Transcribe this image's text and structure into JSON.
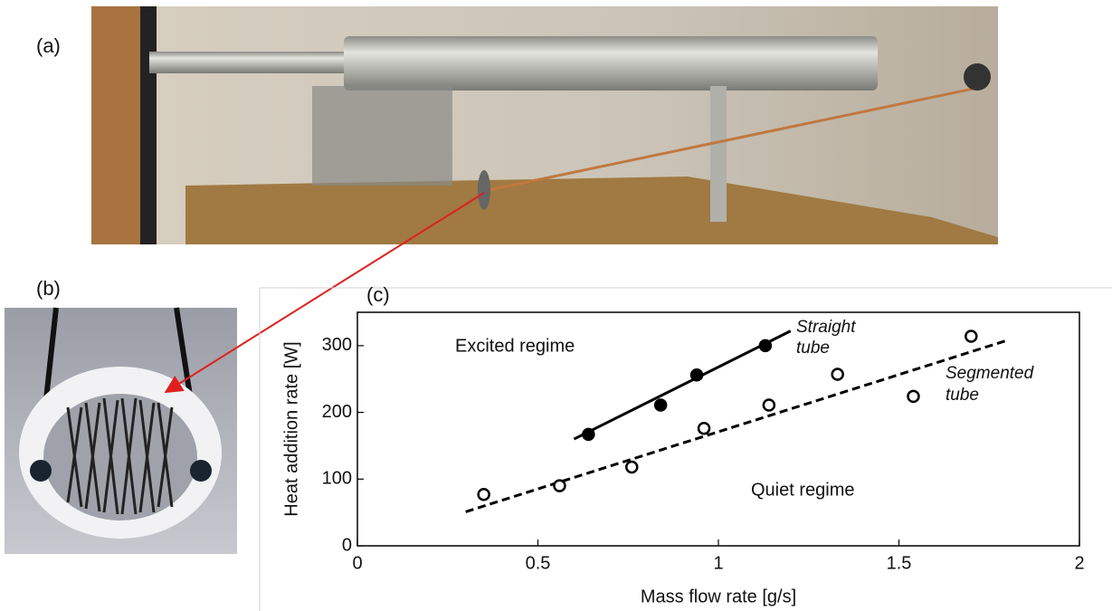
{
  "panels": {
    "a": "(a)",
    "b": "(b)",
    "c": "(c)"
  },
  "chart_data": {
    "type": "scatter",
    "xlabel": "Mass flow rate [g/s]",
    "ylabel": "Heat addition rate [W]",
    "xlim": [
      0,
      2
    ],
    "xticks": [
      0,
      0.5,
      1,
      1.5,
      2
    ],
    "ylim": [
      0,
      350
    ],
    "yticks": [
      0,
      100,
      200,
      300
    ],
    "series": [
      {
        "color": "#000000",
        "marker": "filled",
        "x": [
          0.64,
          0.84,
          0.94,
          1.13
        ],
        "values": [
          167,
          211,
          256,
          300
        ],
        "fit": {
          "style": "solid",
          "x": [
            0.6,
            1.2
          ],
          "values": [
            160,
            322
          ]
        }
      },
      {
        "color": "#000000",
        "marker": "open",
        "x": [
          0.35,
          0.56,
          0.76,
          0.96,
          1.14,
          1.33,
          1.54,
          1.7
        ],
        "values": [
          77,
          90,
          118,
          176,
          211,
          257,
          224,
          314
        ],
        "fit": {
          "style": "dashed",
          "x": [
            0.3,
            1.8
          ],
          "values": [
            51,
            308
          ]
        }
      }
    ],
    "annotations": [
      {
        "text": "Excited regime",
        "style": "normal"
      },
      {
        "text": "Quiet regime",
        "style": "normal"
      },
      {
        "text": "Straight",
        "style": "italic"
      },
      {
        "text": "tube",
        "style": "italic"
      },
      {
        "text": "Segmented",
        "style": "italic"
      },
      {
        "text": "tube",
        "style": "italic"
      }
    ]
  }
}
